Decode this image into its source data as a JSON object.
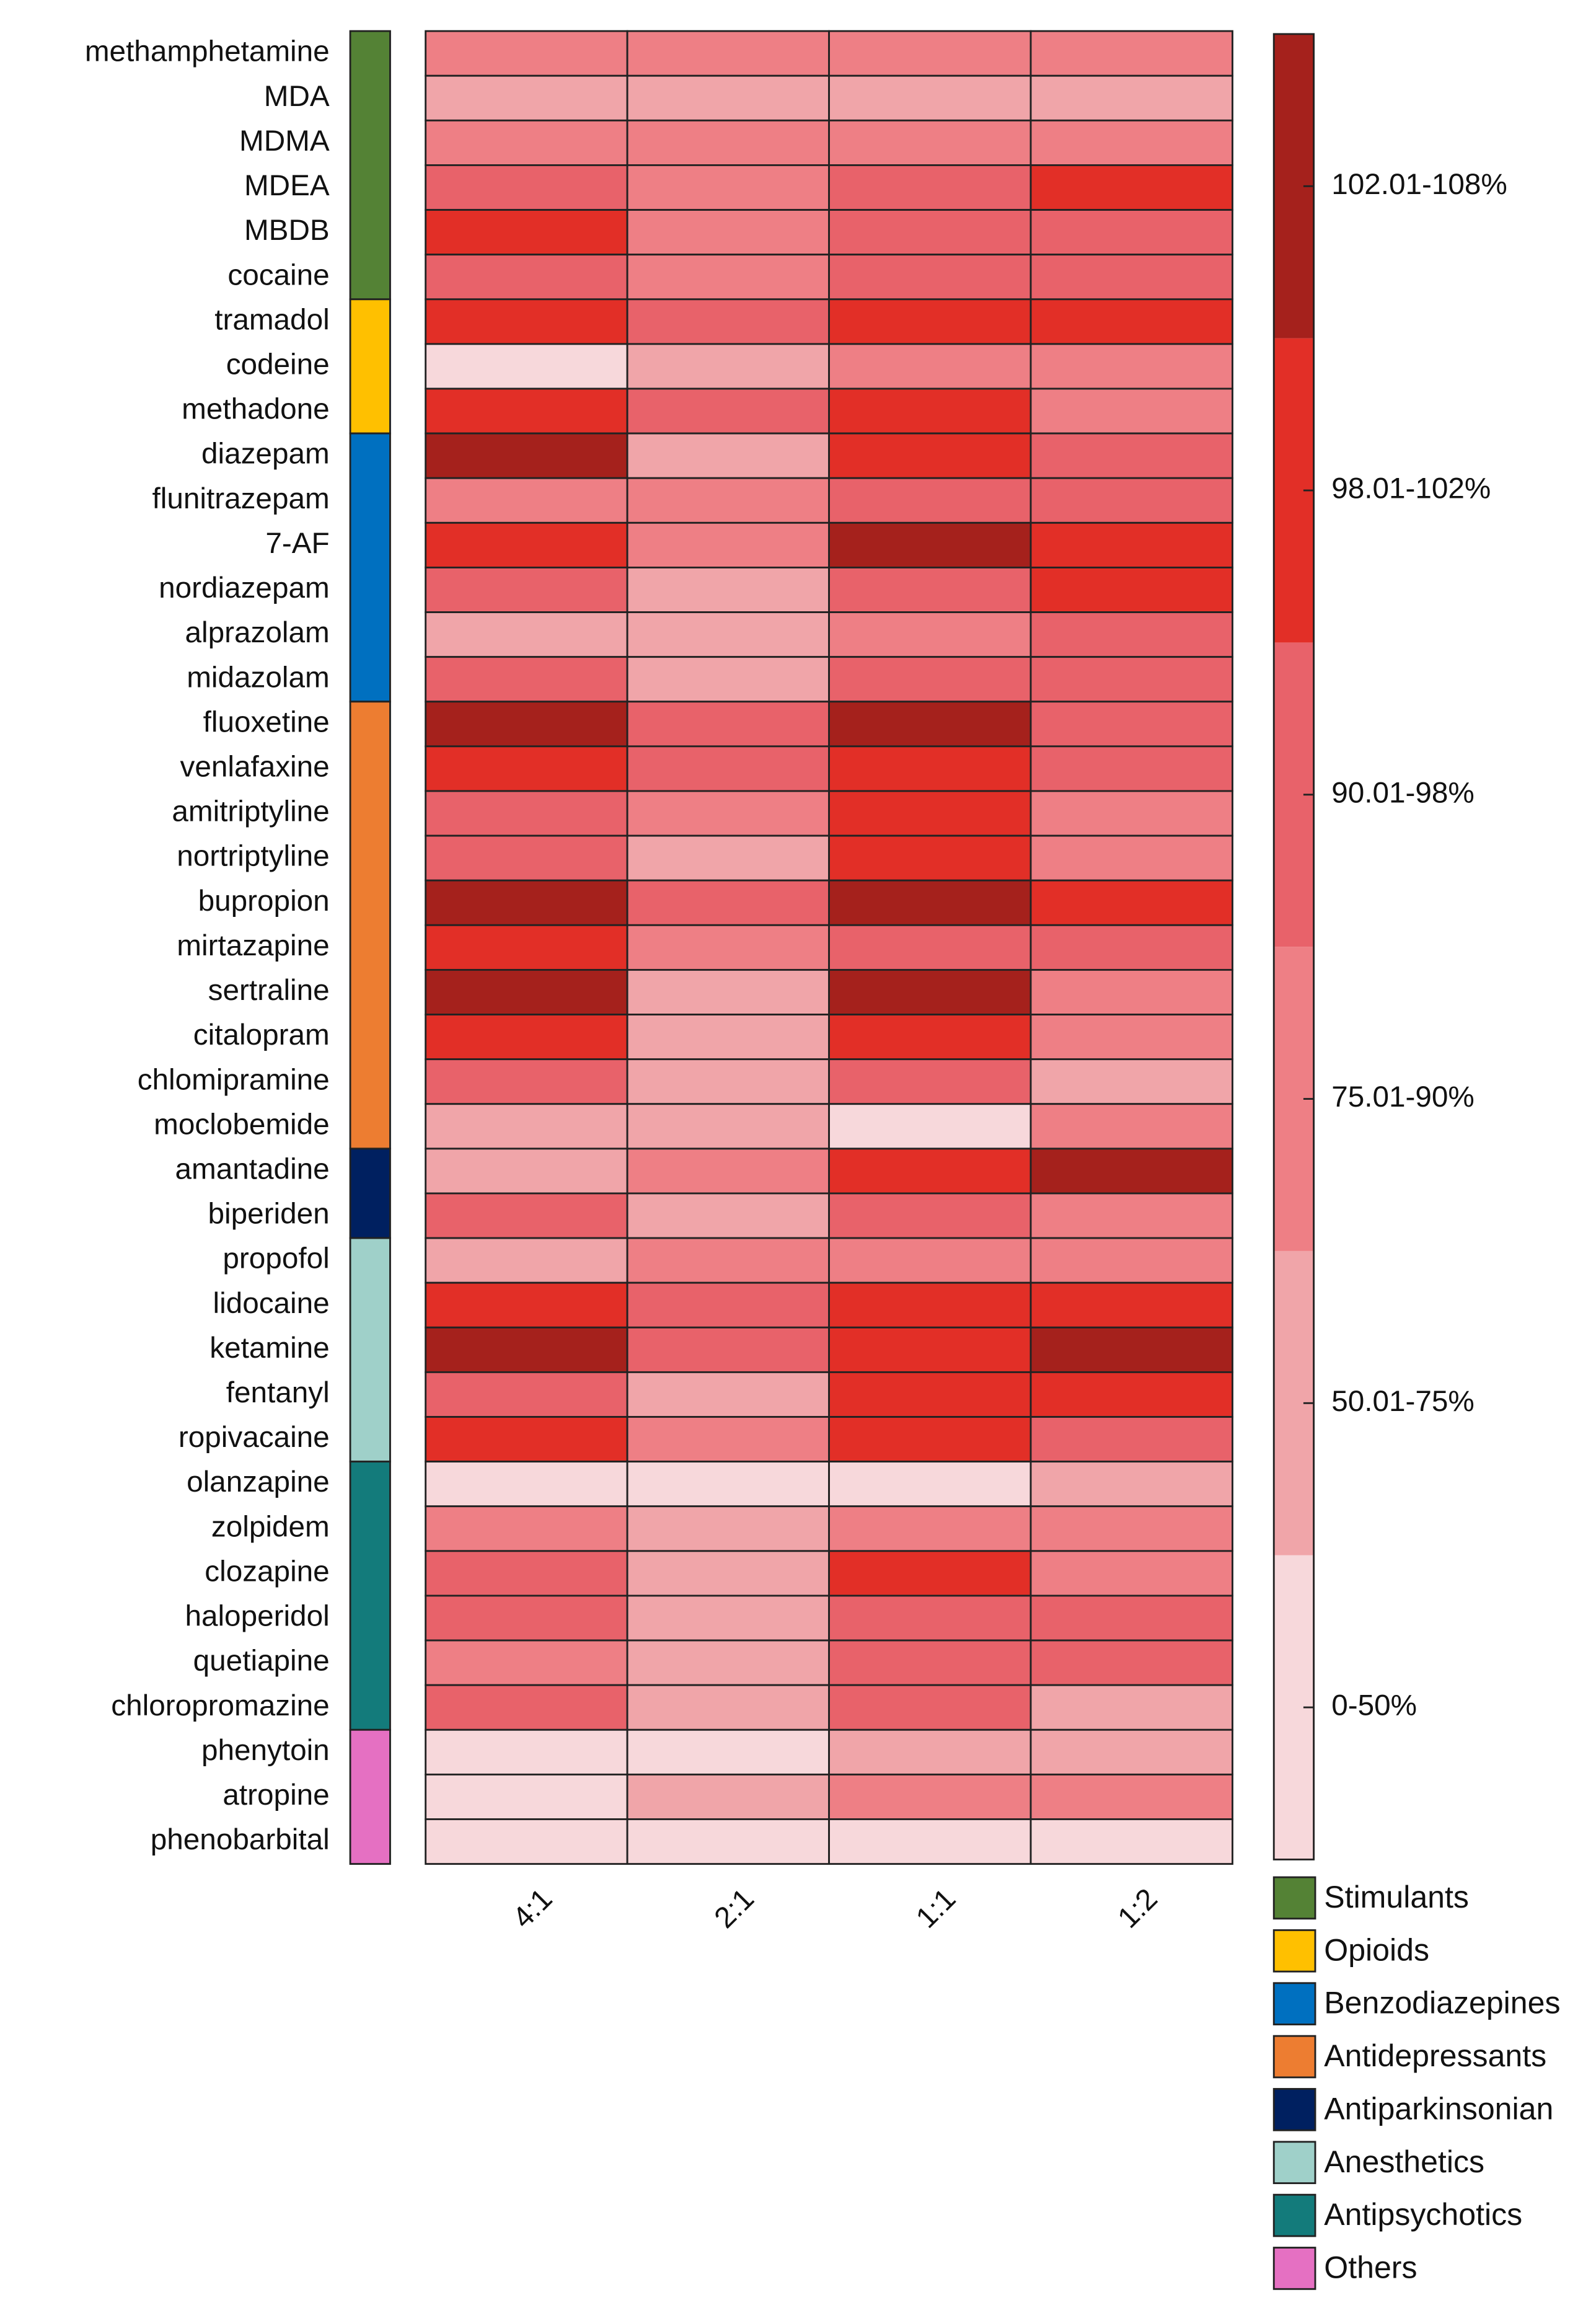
{
  "chart_data": {
    "type": "heatmap",
    "rows": [
      "methamphetamine",
      "MDA",
      "MDMA",
      "MDEA",
      "MBDB",
      "cocaine",
      "tramadol",
      "codeine",
      "methadone",
      "diazepam",
      "flunitrazepam",
      "7-AF",
      "nordiazepam",
      "alprazolam",
      "midazolam",
      "fluoxetine",
      "venlafaxine",
      "amitriptyline",
      "nortriptyline",
      "bupropion",
      "mirtazapine",
      "sertraline",
      "citalopram",
      "chlomipramine",
      "moclobemide",
      "amantadine",
      "biperiden",
      "propofol",
      "lidocaine",
      "ketamine",
      "fentanyl",
      "ropivacaine",
      "olanzapine",
      "zolpidem",
      "clozapine",
      "haloperidol",
      "quetiapine",
      "chloropromazine",
      "phenytoin",
      "atropine",
      "phenobarbital"
    ],
    "columns": [
      "4:1",
      "2:1",
      "1:1",
      "1:2"
    ],
    "classes": [
      {
        "label": "0-50%",
        "color": "#f7d8db"
      },
      {
        "label": "50.01-75%",
        "color": "#f0a5a9"
      },
      {
        "label": "75.01-90%",
        "color": "#ee7f85"
      },
      {
        "label": "90.01-98%",
        "color": "#e8626a"
      },
      {
        "label": "98.01-102%",
        "color": "#e22f27"
      },
      {
        "label": "102.01-108%",
        "color": "#a5211c"
      }
    ],
    "values": [
      [
        2,
        2,
        2,
        2
      ],
      [
        1,
        1,
        1,
        1
      ],
      [
        2,
        2,
        2,
        2
      ],
      [
        3,
        2,
        3,
        4
      ],
      [
        4,
        2,
        3,
        3
      ],
      [
        3,
        2,
        3,
        3
      ],
      [
        4,
        3,
        4,
        4
      ],
      [
        0,
        1,
        2,
        2
      ],
      [
        4,
        3,
        4,
        2
      ],
      [
        5,
        1,
        4,
        3
      ],
      [
        2,
        2,
        3,
        3
      ],
      [
        4,
        2,
        5,
        4
      ],
      [
        3,
        1,
        3,
        4
      ],
      [
        1,
        1,
        2,
        3
      ],
      [
        3,
        1,
        3,
        3
      ],
      [
        5,
        3,
        5,
        3
      ],
      [
        4,
        3,
        4,
        3
      ],
      [
        3,
        2,
        4,
        2
      ],
      [
        3,
        1,
        4,
        2
      ],
      [
        5,
        3,
        5,
        4
      ],
      [
        4,
        2,
        3,
        3
      ],
      [
        5,
        1,
        5,
        2
      ],
      [
        4,
        1,
        4,
        2
      ],
      [
        3,
        1,
        3,
        1
      ],
      [
        1,
        1,
        0,
        2
      ],
      [
        1,
        2,
        4,
        5
      ],
      [
        3,
        1,
        3,
        2
      ],
      [
        1,
        2,
        2,
        2
      ],
      [
        4,
        3,
        4,
        4
      ],
      [
        5,
        3,
        4,
        5
      ],
      [
        3,
        1,
        4,
        4
      ],
      [
        4,
        2,
        4,
        3
      ],
      [
        0,
        0,
        0,
        1
      ],
      [
        2,
        1,
        2,
        2
      ],
      [
        3,
        1,
        4,
        2
      ],
      [
        3,
        1,
        3,
        3
      ],
      [
        2,
        1,
        3,
        3
      ],
      [
        3,
        1,
        3,
        1
      ],
      [
        0,
        0,
        1,
        1
      ],
      [
        0,
        1,
        2,
        2
      ],
      [
        0,
        0,
        0,
        0
      ]
    ],
    "groups": [
      {
        "name": "Stimulants",
        "color": "#548235"
      },
      {
        "name": "Opioids",
        "color": "#ffc000"
      },
      {
        "name": "Benzodiazepines",
        "color": "#0070c0"
      },
      {
        "name": "Antidepressants",
        "color": "#ed7d31"
      },
      {
        "name": "Antiparkinsonian",
        "color": "#002060"
      },
      {
        "name": "Anesthetics",
        "color": "#9fd0c9"
      },
      {
        "name": "Antipsychotics",
        "color": "#137b7b"
      },
      {
        "name": "Others",
        "color": "#e570c2"
      }
    ],
    "row_group": [
      0,
      0,
      0,
      0,
      0,
      0,
      1,
      1,
      1,
      2,
      2,
      2,
      2,
      2,
      2,
      3,
      3,
      3,
      3,
      3,
      3,
      3,
      3,
      3,
      3,
      4,
      4,
      5,
      5,
      5,
      5,
      5,
      6,
      6,
      6,
      6,
      6,
      6,
      7,
      7,
      7
    ]
  }
}
